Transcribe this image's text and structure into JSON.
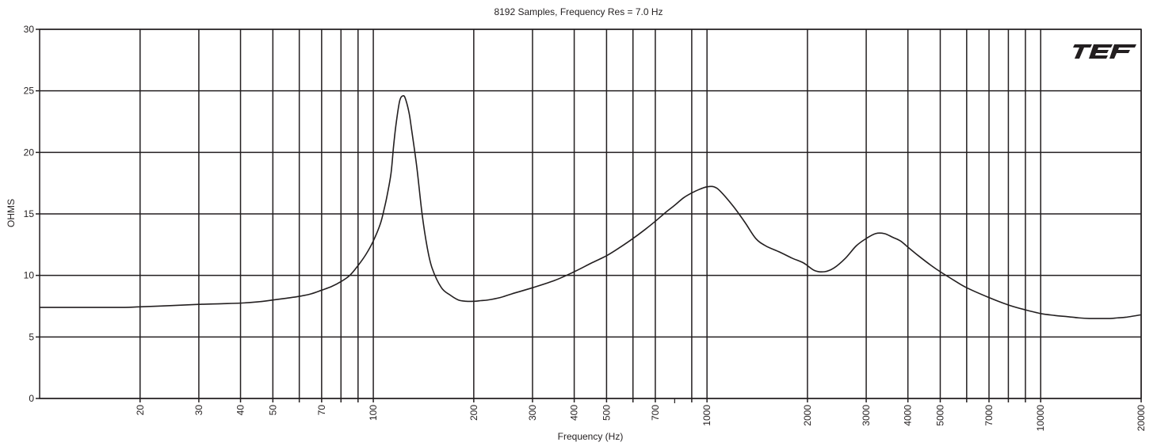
{
  "chart_data": {
    "type": "line",
    "title": "8192 Samples, Frequency Res = 7.0 Hz",
    "xlabel": "Frequency (Hz)",
    "ylabel": "OHMS",
    "x_scale": "log",
    "xlim": [
      10,
      20000
    ],
    "ylim": [
      0,
      30
    ],
    "grid": true,
    "x_ticks": [
      20,
      30,
      40,
      50,
      70,
      100,
      200,
      300,
      400,
      500,
      700,
      1000,
      2000,
      3000,
      4000,
      5000,
      7000,
      10000,
      20000
    ],
    "x_gridlines": [
      20,
      30,
      40,
      50,
      60,
      70,
      80,
      90,
      100,
      200,
      300,
      400,
      500,
      600,
      700,
      900,
      1000,
      2000,
      3000,
      4000,
      5000,
      6000,
      7000,
      8000,
      9000,
      10000,
      20000
    ],
    "y_ticks": [
      0,
      5,
      10,
      15,
      20,
      25,
      30
    ],
    "series": [
      {
        "color": "#231f20",
        "x": [
          10,
          12,
          15,
          18,
          20,
          25,
          30,
          35,
          40,
          45,
          50,
          55,
          60,
          65,
          70,
          75,
          80,
          85,
          90,
          95,
          100,
          105,
          108,
          110,
          113,
          115,
          117,
          120,
          123,
          125,
          128,
          130,
          135,
          140,
          145,
          150,
          160,
          170,
          180,
          190,
          200,
          210,
          220,
          240,
          260,
          300,
          350,
          400,
          450,
          500,
          550,
          600,
          650,
          700,
          750,
          800,
          850,
          900,
          950,
          1000,
          1050,
          1100,
          1200,
          1300,
          1400,
          1500,
          1650,
          1800,
          1950,
          2100,
          2250,
          2400,
          2600,
          2800,
          3000,
          3200,
          3400,
          3600,
          3800,
          4000,
          4300,
          4700,
          5000,
          5500,
          6000,
          7000,
          8000,
          9000,
          10000,
          11000,
          12000,
          13000,
          14000,
          15000,
          16000,
          17000,
          18000,
          20000
        ],
        "y": [
          7.4,
          7.4,
          7.4,
          7.4,
          7.45,
          7.55,
          7.65,
          7.7,
          7.75,
          7.85,
          8.0,
          8.15,
          8.3,
          8.5,
          8.8,
          9.1,
          9.5,
          10.0,
          10.8,
          11.7,
          12.8,
          14.2,
          15.5,
          16.5,
          18.3,
          20.5,
          22.3,
          24.2,
          24.6,
          24.3,
          23.2,
          22.0,
          18.8,
          15.0,
          12.3,
          10.6,
          9.0,
          8.4,
          8.0,
          7.9,
          7.9,
          7.95,
          8.0,
          8.2,
          8.5,
          9.0,
          9.6,
          10.3,
          11.0,
          11.6,
          12.3,
          13.0,
          13.7,
          14.4,
          15.1,
          15.7,
          16.3,
          16.7,
          17.0,
          17.2,
          17.2,
          16.8,
          15.6,
          14.3,
          13.0,
          12.4,
          11.9,
          11.4,
          11.0,
          10.4,
          10.3,
          10.6,
          11.4,
          12.4,
          13.0,
          13.4,
          13.4,
          13.1,
          12.8,
          12.3,
          11.6,
          10.8,
          10.3,
          9.6,
          9.0,
          8.2,
          7.6,
          7.2,
          6.9,
          6.75,
          6.65,
          6.55,
          6.5,
          6.5,
          6.5,
          6.55,
          6.6,
          6.8
        ]
      }
    ],
    "logo": {
      "text": "TEF",
      "color": "#231f20"
    }
  }
}
